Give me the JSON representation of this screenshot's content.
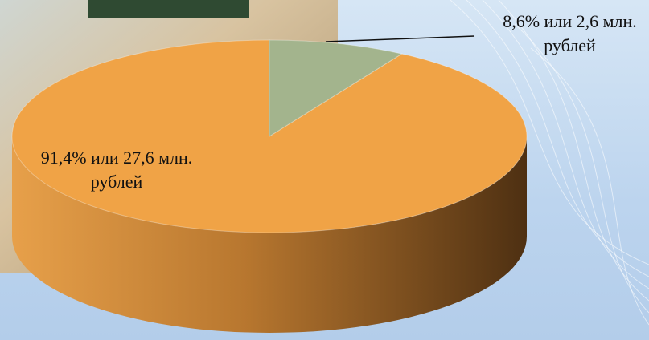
{
  "chart_data": {
    "type": "pie",
    "values": [
      91.4,
      8.6
    ],
    "value_labels": [
      "91,4% или 27,6 млн. рублей",
      "8,6% или  2,6 млн. рублей"
    ],
    "colors": [
      "#f0a346",
      "#a3b48d"
    ]
  }
}
